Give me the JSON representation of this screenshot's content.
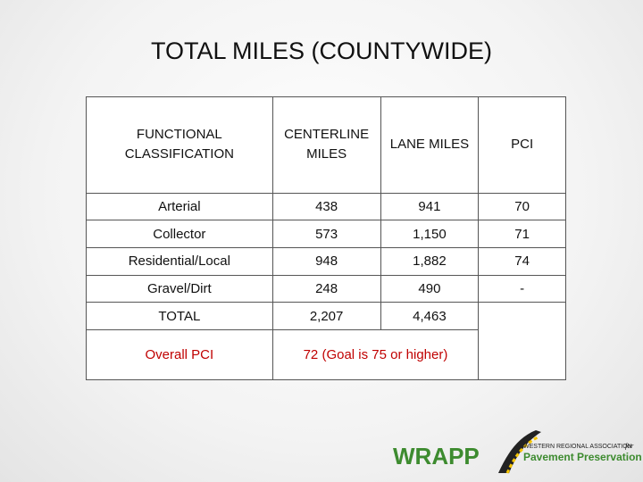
{
  "title": "TOTAL MILES (COUNTYWIDE)",
  "table": {
    "header": [
      "FUNCTIONAL CLASSIFICATION",
      "CENTERLINE MILES",
      "LANE MILES",
      "PCI"
    ],
    "rows": [
      [
        "Arterial",
        "438",
        "941",
        "70"
      ],
      [
        "Collector",
        "573",
        "1,150",
        "71"
      ],
      [
        "Residential/Local",
        "948",
        "1,882",
        "74"
      ],
      [
        "Gravel/Dirt",
        "248",
        "490",
        "-"
      ],
      [
        "TOTAL",
        "2,207",
        "4,463"
      ]
    ],
    "overall": {
      "label": "Overall PCI",
      "value": "72 (Goal is 75 or higher)"
    }
  },
  "logo": {
    "name": "WRAPP",
    "org": "WESTERN REGIONAL ASSOCIATION",
    "for": "for",
    "sub": "Pavement Preservation"
  }
}
